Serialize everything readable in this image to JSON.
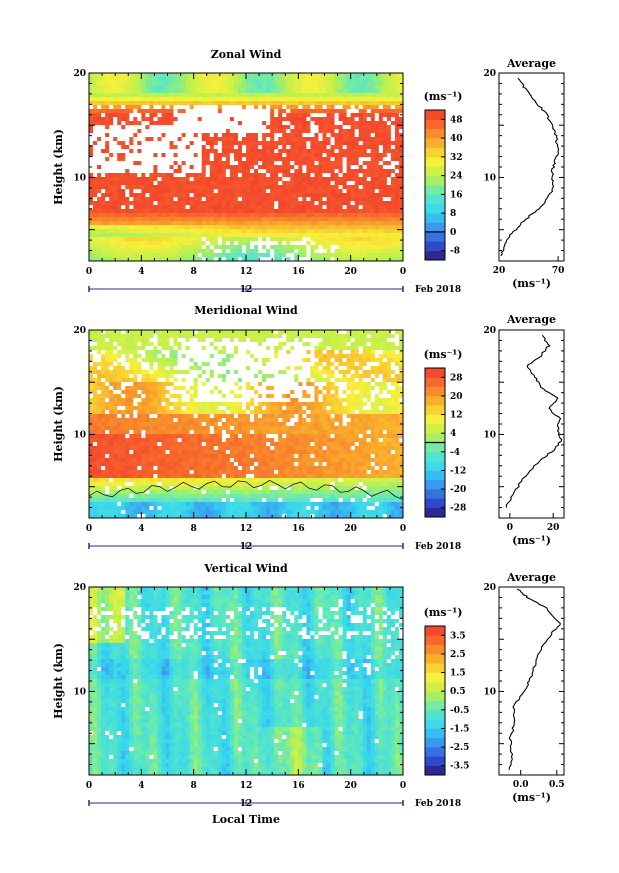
{
  "chart_data": [
    {
      "type": "heatmap",
      "title": "Zonal Wind",
      "ylabel": "Height (km)",
      "xlabel": "",
      "x_ticks": [
        "0",
        "4",
        "8",
        "12",
        "16",
        "20",
        "0"
      ],
      "y_ticks": [
        "20",
        "10"
      ],
      "ylim": [
        2,
        20
      ],
      "xlim": [
        0,
        24
      ],
      "date_label": "12",
      "date_suffix": "Feb 2018",
      "colorbar": {
        "unit": "(ms⁻¹)",
        "ticks": [
          "48",
          "40",
          "32",
          "24",
          "16",
          "8",
          "0",
          "-8"
        ],
        "range": [
          -12,
          52
        ],
        "zero_line_value": 0
      },
      "profile": {
        "title": "Average",
        "xlabel": "(ms⁻¹)",
        "x_ticks": [
          "20",
          "70"
        ],
        "xlim": [
          20,
          75
        ],
        "y_ticks": [
          "20",
          "10"
        ],
        "points": [
          [
            22,
            2.5
          ],
          [
            25,
            3.5
          ],
          [
            30,
            4.5
          ],
          [
            38,
            5.5
          ],
          [
            48,
            6.5
          ],
          [
            58,
            7.5
          ],
          [
            64,
            8.5
          ],
          [
            66,
            9.5
          ],
          [
            65,
            10.5
          ],
          [
            67,
            11.5
          ],
          [
            70,
            12.5
          ],
          [
            69,
            13.5
          ],
          [
            67,
            14.5
          ],
          [
            63,
            15.5
          ],
          [
            57,
            16.5
          ],
          [
            49,
            17.5
          ],
          [
            42,
            18.5
          ],
          [
            36,
            19.5
          ]
        ]
      }
    },
    {
      "type": "heatmap",
      "title": "Meridional Wind",
      "ylabel": "Height (km)",
      "xlabel": "",
      "x_ticks": [
        "0",
        "4",
        "8",
        "12",
        "16",
        "20",
        "0"
      ],
      "y_ticks": [
        "20",
        "10"
      ],
      "ylim": [
        2,
        20
      ],
      "xlim": [
        0,
        24
      ],
      "date_label": "12",
      "date_suffix": "Feb 2018",
      "colorbar": {
        "unit": "(ms⁻¹)",
        "ticks": [
          "28",
          "20",
          "12",
          "4",
          "-4",
          "-12",
          "-20",
          "-28"
        ],
        "range": [
          -32,
          32
        ],
        "zero_line_value": 0
      },
      "profile": {
        "title": "Average",
        "xlabel": "(ms⁻¹)",
        "x_ticks": [
          "0",
          "20"
        ],
        "xlim": [
          -5,
          25
        ],
        "y_ticks": [
          "20",
          "10"
        ],
        "points": [
          [
            -2,
            3
          ],
          [
            2,
            4.5
          ],
          [
            7,
            6
          ],
          [
            14,
            7.5
          ],
          [
            20,
            8.5
          ],
          [
            24,
            9.5
          ],
          [
            22,
            10.5
          ],
          [
            23,
            11.5
          ],
          [
            18,
            12.5
          ],
          [
            22,
            13.5
          ],
          [
            14,
            14.5
          ],
          [
            12,
            15.5
          ],
          [
            8,
            16.5
          ],
          [
            14,
            17.5
          ],
          [
            18,
            18.5
          ],
          [
            15,
            19.5
          ]
        ]
      }
    },
    {
      "type": "heatmap",
      "title": "Vertical Wind",
      "ylabel": "Height (km)",
      "xlabel": "Local Time",
      "x_ticks": [
        "0",
        "4",
        "8",
        "12",
        "16",
        "20",
        "0"
      ],
      "y_ticks": [
        "20",
        "10"
      ],
      "ylim": [
        2,
        20
      ],
      "xlim": [
        0,
        24
      ],
      "date_label": "12",
      "date_suffix": "Feb 2018",
      "colorbar": {
        "unit": "(ms⁻¹)",
        "ticks": [
          "3.5",
          "2.5",
          "1.5",
          "0.5",
          "-0.5",
          "-1.5",
          "-2.5",
          "-3.5"
        ],
        "range": [
          -4,
          4
        ],
        "zero_line_value": null
      },
      "profile": {
        "title": "Average",
        "xlabel": "(ms⁻¹)",
        "x_ticks": [
          "0.0",
          "0.5"
        ],
        "xlim": [
          -0.3,
          0.6
        ],
        "y_ticks": [
          "20",
          "10"
        ],
        "points": [
          [
            -0.15,
            2.5
          ],
          [
            -0.12,
            4
          ],
          [
            -0.14,
            5.5
          ],
          [
            -0.08,
            7
          ],
          [
            -0.1,
            8.5
          ],
          [
            0.05,
            10
          ],
          [
            0.12,
            11
          ],
          [
            0.2,
            12.5
          ],
          [
            0.28,
            14
          ],
          [
            0.42,
            15.5
          ],
          [
            0.55,
            16.5
          ],
          [
            0.35,
            18
          ],
          [
            0.1,
            19
          ],
          [
            -0.05,
            19.8
          ]
        ]
      }
    }
  ]
}
